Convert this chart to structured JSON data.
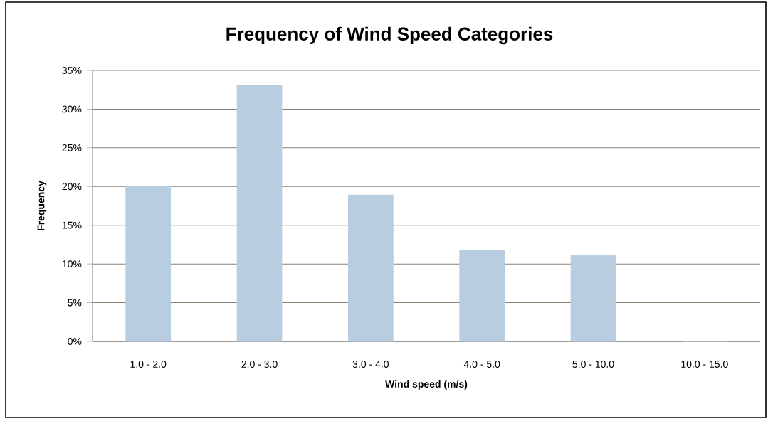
{
  "chart_data": {
    "type": "bar",
    "title": "Frequency of Wind Speed Categories",
    "xlabel": "Wind speed (m/s)",
    "ylabel": "Frequency",
    "categories": [
      "1.0 - 2.0",
      "2.0 - 3.0",
      "3.0 - 4.0",
      "4.0 - 5.0",
      "5.0 - 10.0",
      "10.0 - 15.0"
    ],
    "values": [
      20,
      33.1,
      18.9,
      11.7,
      11.1,
      0
    ],
    "color": "#b9cde0",
    "ylim": [
      0,
      35
    ],
    "yticks": [
      {
        "value": 0,
        "label": "0%"
      },
      {
        "value": 5,
        "label": "5%"
      },
      {
        "value": 10,
        "label": "10%"
      },
      {
        "value": 15,
        "label": "15%"
      },
      {
        "value": 20,
        "label": "20%"
      },
      {
        "value": 25,
        "label": "25%"
      },
      {
        "value": 30,
        "label": "30%"
      },
      {
        "value": 35,
        "label": "35%"
      }
    ],
    "grid": "y"
  }
}
